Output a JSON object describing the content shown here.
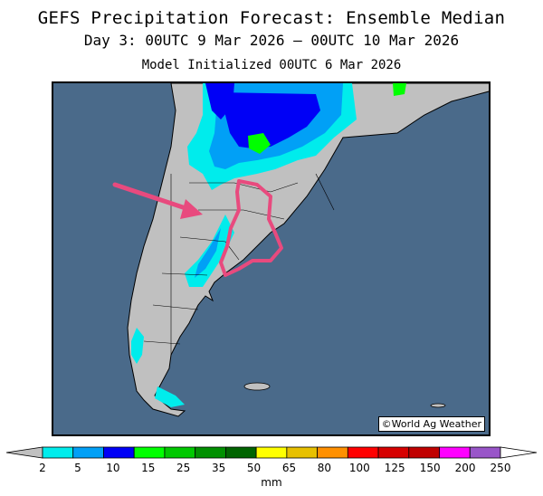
{
  "header": {
    "title": "GEFS Precipitation Forecast: Ensemble Median",
    "valid_period": "Day 3: 00UTC 9 Mar 2026 — 00UTC 10 Mar 2026",
    "initialized": "Model Initialized 00UTC 6 Mar 2026"
  },
  "map": {
    "region": "southern South America",
    "credit": "©World Ag Weather",
    "colors": {
      "ocean": "#4a6a8a",
      "land": "#c0c0c0",
      "annotation": "#e84a7e"
    }
  },
  "legend": {
    "unit": "mm",
    "ticks": [
      "2",
      "5",
      "10",
      "15",
      "25",
      "35",
      "50",
      "65",
      "80",
      "100",
      "125",
      "150",
      "200",
      "250"
    ],
    "colors": [
      "#00ecec",
      "#01a0f6",
      "#0000f6",
      "#00ff00",
      "#00c800",
      "#009000",
      "#006400",
      "#ffff00",
      "#e7c000",
      "#ff9000",
      "#ff0000",
      "#d60000",
      "#c00000",
      "#ff00ff",
      "#9955c9"
    ],
    "end_colors": {
      "low": "#c0c0c0",
      "high": "#ffffff"
    }
  }
}
